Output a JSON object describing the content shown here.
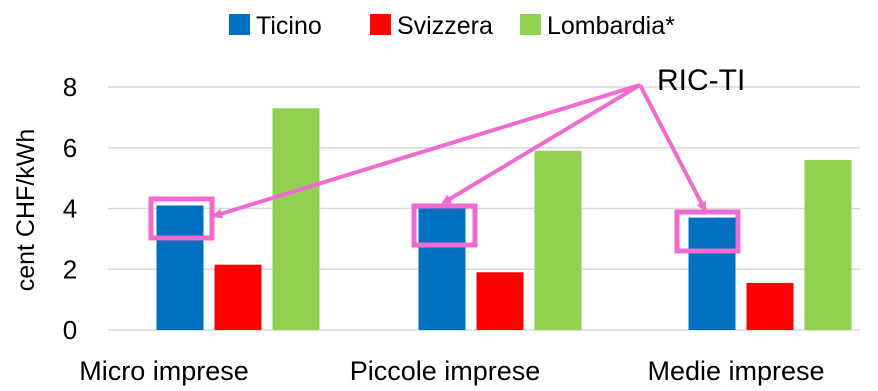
{
  "chart_data": {
    "type": "bar",
    "categories": [
      "Micro imprese",
      "Piccole imprese",
      "Medie imprese"
    ],
    "series": [
      {
        "name": "Ticino",
        "values": [
          4.1,
          4.0,
          3.7
        ],
        "color": "#0070C0"
      },
      {
        "name": "Svizzera",
        "values": [
          2.15,
          1.9,
          1.55
        ],
        "color": "#FF0000"
      },
      {
        "name": "Lombardia*",
        "values": [
          7.3,
          5.9,
          5.6
        ],
        "color": "#92D050"
      }
    ],
    "ylabel": "cent CHF/kWh",
    "ylim": [
      0,
      8
    ],
    "yticks": [
      0,
      2,
      4,
      6,
      8
    ],
    "grid": true,
    "legend_position": "top",
    "annotation": {
      "text": "RIC-TI",
      "color": "#F06BD0",
      "targets_series": "Ticino",
      "targets_categories": [
        "Micro imprese",
        "Piccole imprese",
        "Medie imprese"
      ]
    }
  }
}
